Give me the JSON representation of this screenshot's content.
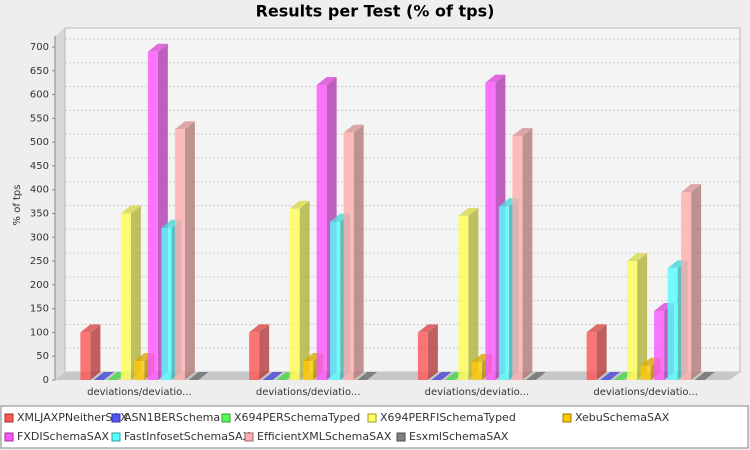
{
  "chart_data": {
    "type": "bar3d",
    "title": "Results per Test (% of tps)",
    "y_label": "% of tps",
    "categories": [
      "deviations/deviatio...",
      "deviations/deviatio...",
      "deviations/deviatio...",
      "deviations/deviatio..."
    ],
    "series": [
      {
        "name": "XMLJAXPNeitherSAX",
        "color": "#ff5555",
        "values": [
          100,
          100,
          100,
          100
        ]
      },
      {
        "name": "ASN1BERSchema",
        "color": "#5555ff",
        "values": [
          0,
          0,
          0,
          0
        ]
      },
      {
        "name": "X694PERSchemaTyped",
        "color": "#55ff55",
        "values": [
          0,
          0,
          0,
          0
        ]
      },
      {
        "name": "X694PERFISchemaTyped",
        "color": "#ffff55",
        "values": [
          350,
          360,
          345,
          250
        ]
      },
      {
        "name": "XebuSchemaSAX",
        "color": "#ffc800",
        "values": [
          40,
          40,
          38,
          30
        ]
      },
      {
        "name": "FXDISchemaSAX",
        "color": "#ff55ff",
        "values": [
          690,
          620,
          625,
          145
        ]
      },
      {
        "name": "FastInfosetSchemaSAX",
        "color": "#55ffff",
        "values": [
          320,
          333,
          365,
          235
        ]
      },
      {
        "name": "EfficientXMLSchemaSAX",
        "color": "#ffafaf",
        "values": [
          527,
          520,
          513,
          395
        ]
      },
      {
        "name": "EsxmlSchemaSAX",
        "color": "#808080",
        "values": [
          0,
          0,
          0,
          0
        ]
      }
    ],
    "ylim": [
      0,
      700
    ],
    "yticks": [
      0,
      50,
      100,
      150,
      200,
      250,
      300,
      350,
      400,
      450,
      500,
      550,
      600,
      650,
      700
    ],
    "grid": true
  }
}
